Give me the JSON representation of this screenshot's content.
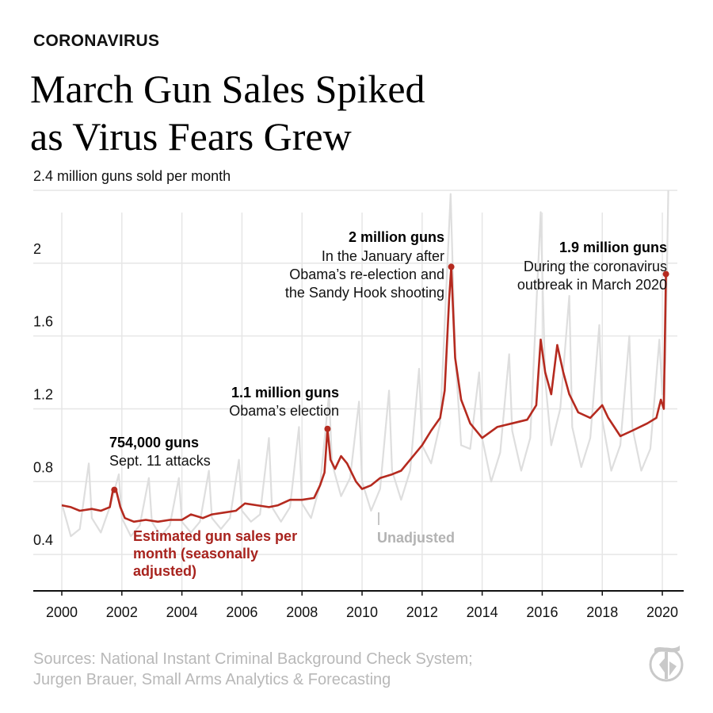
{
  "kicker": "CORONAVIRUS",
  "headline": [
    "March Gun Sales Spiked",
    "as Virus Fears Grew"
  ],
  "source": [
    "Sources: National Instant Criminal Background Check System;",
    "Jurgen Brauer, Small Arms Analytics & Forecasting"
  ],
  "colors": {
    "adjusted": "#b52a1f",
    "unadjusted": "#dedede",
    "grid": "#e6e6e6",
    "axis": "#111111"
  },
  "chart_data": {
    "type": "line",
    "ylabel": "2.4 million guns sold per month",
    "ylim": [
      0.2,
      2.4
    ],
    "xlim": [
      2000,
      2020.5
    ],
    "grid": true,
    "y_ticks": [
      {
        "value": 2.4,
        "label": "2.4 million guns sold per month"
      },
      {
        "value": 2,
        "label": "2"
      },
      {
        "value": 1.6,
        "label": "1.6"
      },
      {
        "value": 1.2,
        "label": "1.2"
      },
      {
        "value": 0.8,
        "label": "0.8"
      },
      {
        "value": 0.4,
        "label": "0.4"
      }
    ],
    "x_ticks": [
      2000,
      2002,
      2004,
      2006,
      2008,
      2010,
      2012,
      2014,
      2016,
      2018,
      2020
    ],
    "series": [
      {
        "name": "Estimated gun sales per month (seasonally adjusted)",
        "label_lines": [
          "Estimated gun sales per",
          "month (seasonally",
          "adjusted)"
        ],
        "points": [
          [
            2000.0,
            0.67
          ],
          [
            2000.3,
            0.66
          ],
          [
            2000.6,
            0.64
          ],
          [
            2001.0,
            0.65
          ],
          [
            2001.3,
            0.64
          ],
          [
            2001.6,
            0.66
          ],
          [
            2001.7,
            0.75
          ],
          [
            2001.8,
            0.76
          ],
          [
            2001.95,
            0.66
          ],
          [
            2002.1,
            0.6
          ],
          [
            2002.4,
            0.58
          ],
          [
            2002.8,
            0.59
          ],
          [
            2003.2,
            0.58
          ],
          [
            2003.6,
            0.59
          ],
          [
            2004.0,
            0.59
          ],
          [
            2004.3,
            0.62
          ],
          [
            2004.7,
            0.6
          ],
          [
            2005.0,
            0.62
          ],
          [
            2005.4,
            0.63
          ],
          [
            2005.8,
            0.64
          ],
          [
            2006.1,
            0.68
          ],
          [
            2006.5,
            0.67
          ],
          [
            2006.9,
            0.66
          ],
          [
            2007.2,
            0.67
          ],
          [
            2007.6,
            0.7
          ],
          [
            2008.0,
            0.7
          ],
          [
            2008.4,
            0.71
          ],
          [
            2008.6,
            0.78
          ],
          [
            2008.75,
            0.85
          ],
          [
            2008.85,
            1.09
          ],
          [
            2008.95,
            0.92
          ],
          [
            2009.1,
            0.87
          ],
          [
            2009.3,
            0.94
          ],
          [
            2009.5,
            0.9
          ],
          [
            2009.8,
            0.8
          ],
          [
            2010.0,
            0.76
          ],
          [
            2010.3,
            0.78
          ],
          [
            2010.6,
            0.82
          ],
          [
            2011.0,
            0.84
          ],
          [
            2011.3,
            0.86
          ],
          [
            2011.6,
            0.92
          ],
          [
            2012.0,
            1.0
          ],
          [
            2012.3,
            1.08
          ],
          [
            2012.6,
            1.15
          ],
          [
            2012.75,
            1.3
          ],
          [
            2012.9,
            1.8
          ],
          [
            2012.97,
            1.98
          ],
          [
            2013.1,
            1.48
          ],
          [
            2013.3,
            1.25
          ],
          [
            2013.6,
            1.12
          ],
          [
            2014.0,
            1.04
          ],
          [
            2014.5,
            1.1
          ],
          [
            2015.0,
            1.12
          ],
          [
            2015.5,
            1.14
          ],
          [
            2015.8,
            1.22
          ],
          [
            2015.95,
            1.58
          ],
          [
            2016.1,
            1.4
          ],
          [
            2016.3,
            1.28
          ],
          [
            2016.5,
            1.55
          ],
          [
            2016.7,
            1.4
          ],
          [
            2016.9,
            1.28
          ],
          [
            2017.2,
            1.18
          ],
          [
            2017.6,
            1.15
          ],
          [
            2018.0,
            1.22
          ],
          [
            2018.2,
            1.15
          ],
          [
            2018.6,
            1.05
          ],
          [
            2019.0,
            1.08
          ],
          [
            2019.5,
            1.12
          ],
          [
            2019.8,
            1.15
          ],
          [
            2019.95,
            1.25
          ],
          [
            2020.05,
            1.2
          ],
          [
            2020.12,
            1.94
          ]
        ]
      },
      {
        "name": "Unadjusted",
        "points": [
          [
            2000.0,
            0.68
          ],
          [
            2000.3,
            0.5
          ],
          [
            2000.6,
            0.54
          ],
          [
            2000.9,
            0.9
          ],
          [
            2001.0,
            0.6
          ],
          [
            2001.3,
            0.52
          ],
          [
            2001.6,
            0.66
          ],
          [
            2001.9,
            0.84
          ],
          [
            2002.0,
            0.6
          ],
          [
            2002.3,
            0.5
          ],
          [
            2002.6,
            0.56
          ],
          [
            2002.9,
            0.82
          ],
          [
            2003.0,
            0.58
          ],
          [
            2003.3,
            0.5
          ],
          [
            2003.6,
            0.56
          ],
          [
            2003.9,
            0.82
          ],
          [
            2004.0,
            0.58
          ],
          [
            2004.3,
            0.52
          ],
          [
            2004.6,
            0.58
          ],
          [
            2004.9,
            0.86
          ],
          [
            2005.0,
            0.6
          ],
          [
            2005.3,
            0.54
          ],
          [
            2005.6,
            0.6
          ],
          [
            2005.9,
            0.92
          ],
          [
            2006.0,
            0.64
          ],
          [
            2006.3,
            0.58
          ],
          [
            2006.6,
            0.62
          ],
          [
            2006.9,
            1.04
          ],
          [
            2007.0,
            0.66
          ],
          [
            2007.3,
            0.58
          ],
          [
            2007.6,
            0.66
          ],
          [
            2007.9,
            1.1
          ],
          [
            2008.0,
            0.68
          ],
          [
            2008.3,
            0.6
          ],
          [
            2008.6,
            0.78
          ],
          [
            2008.9,
            1.28
          ],
          [
            2009.0,
            0.9
          ],
          [
            2009.3,
            0.72
          ],
          [
            2009.6,
            0.82
          ],
          [
            2009.9,
            1.24
          ],
          [
            2010.0,
            0.8
          ],
          [
            2010.3,
            0.64
          ],
          [
            2010.6,
            0.76
          ],
          [
            2010.9,
            1.3
          ],
          [
            2011.0,
            0.86
          ],
          [
            2011.3,
            0.7
          ],
          [
            2011.6,
            0.86
          ],
          [
            2011.9,
            1.42
          ],
          [
            2012.0,
            1.0
          ],
          [
            2012.3,
            0.9
          ],
          [
            2012.6,
            1.12
          ],
          [
            2012.95,
            2.38
          ],
          [
            2013.1,
            1.5
          ],
          [
            2013.3,
            1.0
          ],
          [
            2013.6,
            0.98
          ],
          [
            2013.9,
            1.4
          ],
          [
            2014.0,
            1.04
          ],
          [
            2014.3,
            0.8
          ],
          [
            2014.6,
            0.96
          ],
          [
            2014.9,
            1.5
          ],
          [
            2015.0,
            1.08
          ],
          [
            2015.3,
            0.86
          ],
          [
            2015.6,
            1.04
          ],
          [
            2015.95,
            2.28
          ],
          [
            2016.1,
            1.36
          ],
          [
            2016.3,
            1.0
          ],
          [
            2016.6,
            1.2
          ],
          [
            2016.9,
            1.82
          ],
          [
            2017.0,
            1.1
          ],
          [
            2017.3,
            0.88
          ],
          [
            2017.6,
            1.04
          ],
          [
            2017.9,
            1.66
          ],
          [
            2018.0,
            1.14
          ],
          [
            2018.3,
            0.86
          ],
          [
            2018.6,
            1.0
          ],
          [
            2018.9,
            1.6
          ],
          [
            2019.0,
            1.1
          ],
          [
            2019.3,
            0.86
          ],
          [
            2019.6,
            0.98
          ],
          [
            2019.9,
            1.58
          ],
          [
            2020.0,
            1.28
          ],
          [
            2020.1,
            1.45
          ],
          [
            2020.2,
            2.4
          ]
        ]
      }
    ],
    "annotations": [
      {
        "title": "754,000 guns",
        "text": "Sept. 11 attacks",
        "x": 2001.75,
        "y": 0.755
      },
      {
        "title": "1.1 million guns",
        "text": "Obama’s election",
        "x": 2008.85,
        "y": 1.09
      },
      {
        "title": "2 million guns",
        "lines": [
          "In the January after",
          "Obama’s re-election and",
          "the Sandy Hook shooting"
        ],
        "x": 2012.97,
        "y": 1.98
      },
      {
        "title": "1.9 million guns",
        "lines": [
          "During the coronavirus",
          "outbreak in March 2020"
        ],
        "x": 2020.12,
        "y": 1.94
      }
    ],
    "unadjusted_label": "Unadjusted"
  }
}
